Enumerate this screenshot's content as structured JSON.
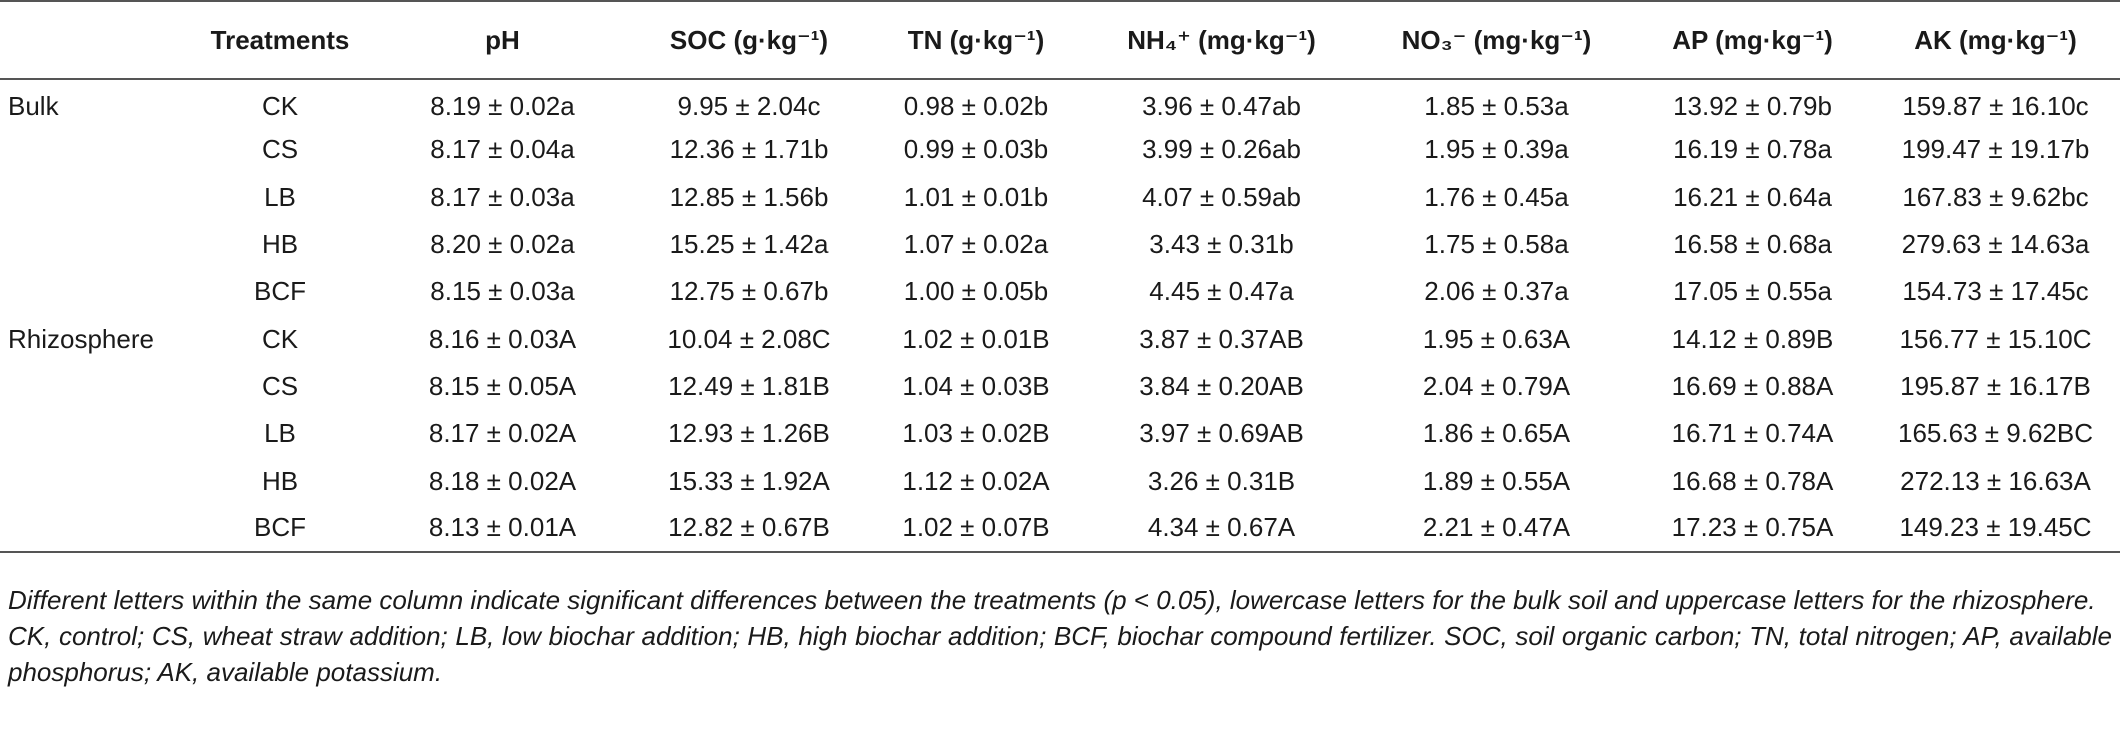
{
  "headers": {
    "group": "",
    "treatments": "Treatments",
    "ph": "pH",
    "soc": "SOC (g·kg⁻¹)",
    "tn": "TN (g·kg⁻¹)",
    "nh4": "NH₄⁺ (mg·kg⁻¹)",
    "no3": "NO₃⁻ (mg·kg⁻¹)",
    "ap": "AP (mg·kg⁻¹)",
    "ak": "AK (mg·kg⁻¹)"
  },
  "rows": [
    {
      "group": "Bulk",
      "treatment": "CK",
      "ph": "8.19 ± 0.02a",
      "soc": "9.95 ± 2.04c",
      "tn": "0.98 ± 0.02b",
      "nh4": "3.96 ± 0.47ab",
      "no3": "1.85 ± 0.53a",
      "ap": "13.92 ± 0.79b",
      "ak": "159.87 ± 16.10c"
    },
    {
      "group": "",
      "treatment": "CS",
      "ph": "8.17 ± 0.04a",
      "soc": "12.36 ± 1.71b",
      "tn": "0.99 ± 0.03b",
      "nh4": "3.99 ± 0.26ab",
      "no3": "1.95 ± 0.39a",
      "ap": "16.19 ± 0.78a",
      "ak": "199.47 ± 19.17b"
    },
    {
      "group": "",
      "treatment": "LB",
      "ph": "8.17 ± 0.03a",
      "soc": "12.85 ± 1.56b",
      "tn": "1.01 ± 0.01b",
      "nh4": "4.07 ± 0.59ab",
      "no3": "1.76 ± 0.45a",
      "ap": "16.21 ± 0.64a",
      "ak": "167.83 ± 9.62bc"
    },
    {
      "group": "",
      "treatment": "HB",
      "ph": "8.20 ± 0.02a",
      "soc": "15.25 ± 1.42a",
      "tn": "1.07 ± 0.02a",
      "nh4": "3.43 ± 0.31b",
      "no3": "1.75 ± 0.58a",
      "ap": "16.58 ± 0.68a",
      "ak": "279.63 ± 14.63a"
    },
    {
      "group": "",
      "treatment": "BCF",
      "ph": "8.15 ± 0.03a",
      "soc": "12.75 ± 0.67b",
      "tn": "1.00 ± 0.05b",
      "nh4": "4.45 ± 0.47a",
      "no3": "2.06 ± 0.37a",
      "ap": "17.05 ± 0.55a",
      "ak": "154.73 ± 17.45c"
    },
    {
      "group": "Rhizosphere",
      "treatment": "CK",
      "ph": "8.16 ± 0.03A",
      "soc": "10.04 ± 2.08C",
      "tn": "1.02 ± 0.01B",
      "nh4": "3.87 ± 0.37AB",
      "no3": "1.95 ± 0.63A",
      "ap": "14.12 ± 0.89B",
      "ak": "156.77 ± 15.10C"
    },
    {
      "group": "",
      "treatment": "CS",
      "ph": "8.15 ± 0.05A",
      "soc": "12.49 ± 1.81B",
      "tn": "1.04 ± 0.03B",
      "nh4": "3.84 ± 0.20AB",
      "no3": "2.04 ± 0.79A",
      "ap": "16.69 ± 0.88A",
      "ak": "195.87 ± 16.17B"
    },
    {
      "group": "",
      "treatment": "LB",
      "ph": "8.17 ± 0.02A",
      "soc": "12.93 ± 1.26B",
      "tn": "1.03 ± 0.02B",
      "nh4": "3.97 ± 0.69AB",
      "no3": "1.86 ± 0.65A",
      "ap": "16.71 ± 0.74A",
      "ak": "165.63 ± 9.62BC"
    },
    {
      "group": "",
      "treatment": "HB",
      "ph": "8.18 ± 0.02A",
      "soc": "15.33 ± 1.92A",
      "tn": "1.12 ± 0.02A",
      "nh4": "3.26 ± 0.31B",
      "no3": "1.89 ± 0.55A",
      "ap": "16.68 ± 0.78A",
      "ak": "272.13 ± 16.63A"
    },
    {
      "group": "",
      "treatment": "BCF",
      "ph": "8.13 ± 0.01A",
      "soc": "12.82 ± 0.67B",
      "tn": "1.02 ± 0.07B",
      "nh4": "4.34 ± 0.67A",
      "no3": "2.21 ± 0.47A",
      "ap": "17.23 ± 0.75A",
      "ak": "149.23 ± 19.45C"
    }
  ],
  "notes": {
    "significance": "Different letters within the same column indicate significant differences between the treatments (p < 0.05), lowercase letters for the bulk soil and uppercase letters for the rhizosphere.",
    "abbreviations": "CK, control; CS, wheat straw addition; LB, low biochar addition; HB, high biochar addition; BCF, biochar compound fertilizer. SOC, soil organic carbon; TN, total nitrogen; AP, available phosphorus; AK, available potassium."
  }
}
